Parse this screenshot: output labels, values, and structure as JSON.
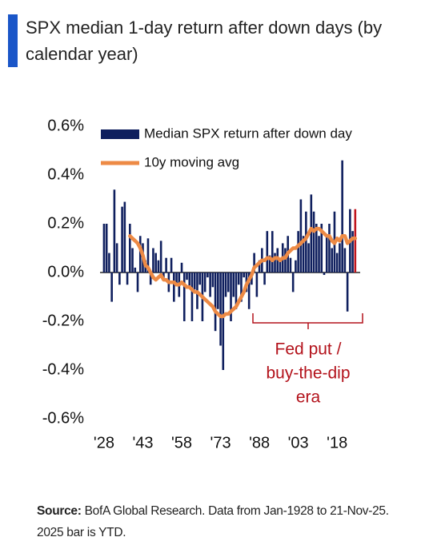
{
  "chart_data": {
    "type": "bar",
    "title": "SPX median 1-day return after down days (by calendar year)",
    "x": [
      1928,
      1929,
      1930,
      1931,
      1932,
      1933,
      1934,
      1935,
      1936,
      1937,
      1938,
      1939,
      1940,
      1941,
      1942,
      1943,
      1944,
      1945,
      1946,
      1947,
      1948,
      1949,
      1950,
      1951,
      1952,
      1953,
      1954,
      1955,
      1956,
      1957,
      1958,
      1959,
      1960,
      1961,
      1962,
      1963,
      1964,
      1965,
      1966,
      1967,
      1968,
      1969,
      1970,
      1971,
      1972,
      1973,
      1974,
      1975,
      1976,
      1977,
      1978,
      1979,
      1980,
      1981,
      1982,
      1983,
      1984,
      1985,
      1986,
      1987,
      1988,
      1989,
      1990,
      1991,
      1992,
      1993,
      1994,
      1995,
      1996,
      1997,
      1998,
      1999,
      2000,
      2001,
      2002,
      2003,
      2004,
      2005,
      2006,
      2007,
      2008,
      2009,
      2010,
      2011,
      2012,
      2013,
      2014,
      2015,
      2016,
      2017,
      2018,
      2019,
      2020,
      2021,
      2022,
      2023,
      2024,
      2025
    ],
    "series": [
      {
        "name": "Median SPX return after down day",
        "kind": "bar",
        "color": "#0f1f5e",
        "last_bar_color": "#c0141c",
        "values": [
          0.2,
          0.2,
          0.08,
          -0.12,
          0.34,
          0.12,
          -0.05,
          0.27,
          0.29,
          -0.05,
          0.2,
          0.1,
          0.02,
          -0.08,
          0.15,
          0.12,
          0.05,
          0.14,
          -0.05,
          0.1,
          0.08,
          0.05,
          0.13,
          -0.03,
          0.06,
          -0.08,
          0.06,
          -0.12,
          -0.05,
          -0.1,
          0.04,
          -0.2,
          -0.03,
          -0.06,
          -0.2,
          -0.07,
          -0.15,
          -0.05,
          -0.2,
          -0.08,
          -0.02,
          -0.1,
          -0.06,
          -0.24,
          -0.15,
          -0.3,
          -0.4,
          -0.1,
          -0.08,
          -0.2,
          -0.1,
          -0.15,
          -0.05,
          -0.12,
          -0.02,
          -0.08,
          -0.15,
          -0.05,
          0.08,
          -0.1,
          0.05,
          0.1,
          -0.05,
          0.17,
          0.07,
          0.17,
          0.08,
          0.1,
          0.05,
          0.12,
          0.1,
          0.15,
          0.06,
          -0.08,
          0.05,
          0.17,
          0.3,
          0.15,
          0.25,
          0.12,
          0.32,
          0.25,
          0.2,
          0.15,
          0.2,
          -0.01,
          0.15,
          0.2,
          0.1,
          0.25,
          0.08,
          0.12,
          0.46,
          0.1,
          -0.16,
          0.26,
          0.17,
          0.26
        ]
      },
      {
        "name": "10y moving avg",
        "kind": "line",
        "color": "#ed8a45",
        "values": [
          null,
          null,
          null,
          null,
          null,
          null,
          null,
          null,
          null,
          null,
          0.15,
          0.14,
          0.13,
          0.12,
          0.1,
          0.07,
          0.03,
          0.02,
          0.0,
          -0.02,
          -0.03,
          -0.02,
          -0.01,
          -0.03,
          -0.03,
          -0.04,
          -0.04,
          -0.04,
          -0.05,
          -0.05,
          -0.04,
          -0.05,
          -0.06,
          -0.06,
          -0.07,
          -0.08,
          -0.08,
          -0.09,
          -0.1,
          -0.11,
          -0.12,
          -0.13,
          -0.14,
          -0.16,
          -0.17,
          -0.18,
          -0.18,
          -0.17,
          -0.17,
          -0.16,
          -0.15,
          -0.14,
          -0.12,
          -0.1,
          -0.08,
          -0.05,
          -0.03,
          -0.01,
          0.02,
          0.03,
          0.04,
          0.05,
          0.05,
          0.06,
          0.06,
          0.05,
          0.06,
          0.06,
          0.05,
          0.06,
          0.06,
          0.08,
          0.09,
          0.1,
          0.1,
          0.11,
          0.12,
          0.13,
          0.14,
          0.16,
          0.18,
          0.17,
          0.18,
          0.18,
          0.17,
          0.16,
          0.15,
          0.15,
          0.13,
          0.12,
          0.14,
          0.13,
          0.15,
          0.15,
          0.12,
          0.13,
          0.14,
          0.14
        ]
      }
    ],
    "xlim": [
      1926.5,
      2027
    ],
    "xticks": [
      {
        "value": 1928,
        "label": "'28"
      },
      {
        "value": 1943,
        "label": "'43"
      },
      {
        "value": 1958,
        "label": "'58"
      },
      {
        "value": 1973,
        "label": "'73"
      },
      {
        "value": 1988,
        "label": "'88"
      },
      {
        "value": 2003,
        "label": "'03"
      },
      {
        "value": 2018,
        "label": "'18"
      }
    ],
    "ylim": [
      -0.6,
      0.6
    ],
    "yticks": [
      {
        "value": 0.6,
        "label": "0.6%"
      },
      {
        "value": 0.4,
        "label": "0.4%"
      },
      {
        "value": 0.2,
        "label": "0.2%"
      },
      {
        "value": 0.0,
        "label": "0.0%"
      },
      {
        "value": -0.2,
        "label": "-0.2%"
      },
      {
        "value": -0.4,
        "label": "-0.4%"
      },
      {
        "value": -0.6,
        "label": "-0.6%"
      }
    ],
    "annotation": [
      "Fed put /",
      "buy-the-dip",
      "era"
    ],
    "annotation_color": "#b3121b",
    "source_label": "Source:",
    "source_text": "BofA Global Research. Data from Jan-1928 to 21-Nov-25. 2025 bar is YTD."
  }
}
